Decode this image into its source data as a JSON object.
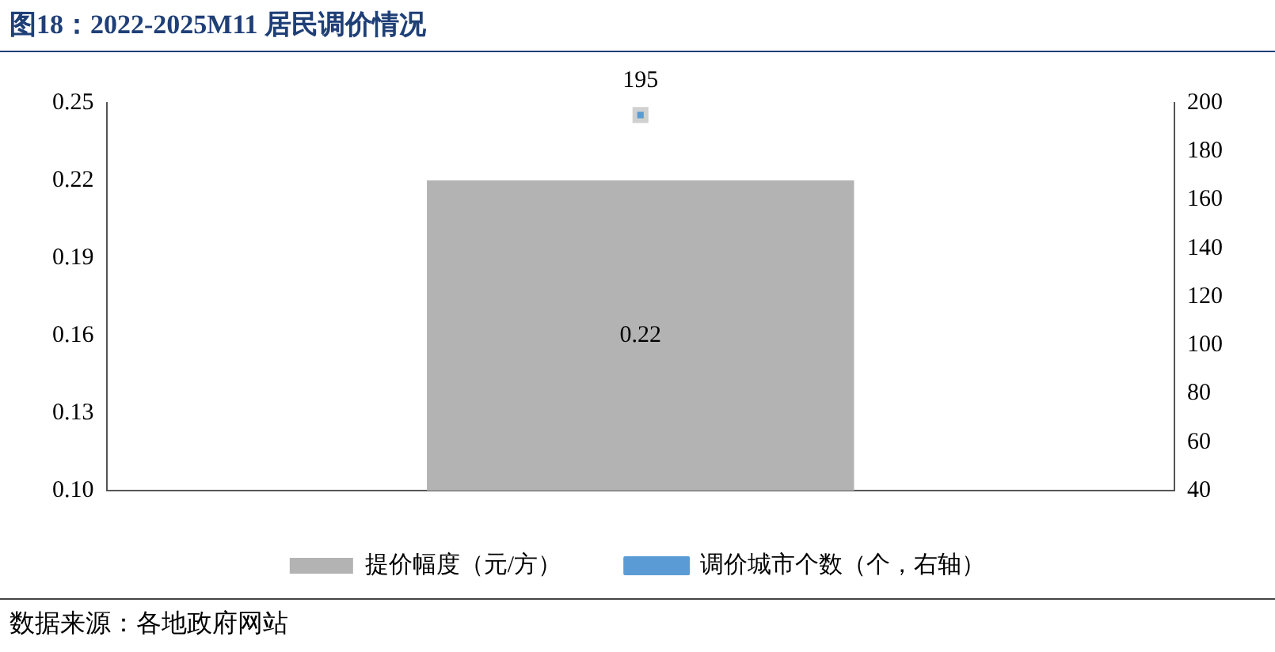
{
  "chart_data": {
    "type": "bar",
    "title": "图18：2022-2025M11 居民调价情况",
    "categories": [
      null
    ],
    "series": [
      {
        "name": "提价幅度（元/方）",
        "color": "#b3b3b3",
        "values": [
          0.22
        ]
      },
      {
        "name": "调价城市个数（个，右轴）",
        "type": "line",
        "axis": "y2",
        "color": "#5b9bd5",
        "values": [
          195
        ]
      }
    ],
    "ylim": [
      0.1,
      0.25
    ],
    "yticks": [
      {
        "value": 0.1,
        "label": "0.10"
      },
      {
        "value": 0.13,
        "label": "0.13"
      },
      {
        "value": 0.16,
        "label": "0.16"
      },
      {
        "value": 0.19,
        "label": "0.19"
      },
      {
        "value": 0.22,
        "label": "0.22"
      },
      {
        "value": 0.25,
        "label": "0.25"
      }
    ],
    "y2lim": [
      40,
      200
    ],
    "y2ticks": [
      40,
      60,
      80,
      100,
      120,
      140,
      160,
      180,
      200
    ],
    "data_labels": true,
    "legend": "bottom",
    "grid": false,
    "marker": "square",
    "annotations": [
      "数据来源：各地政府网站"
    ]
  }
}
